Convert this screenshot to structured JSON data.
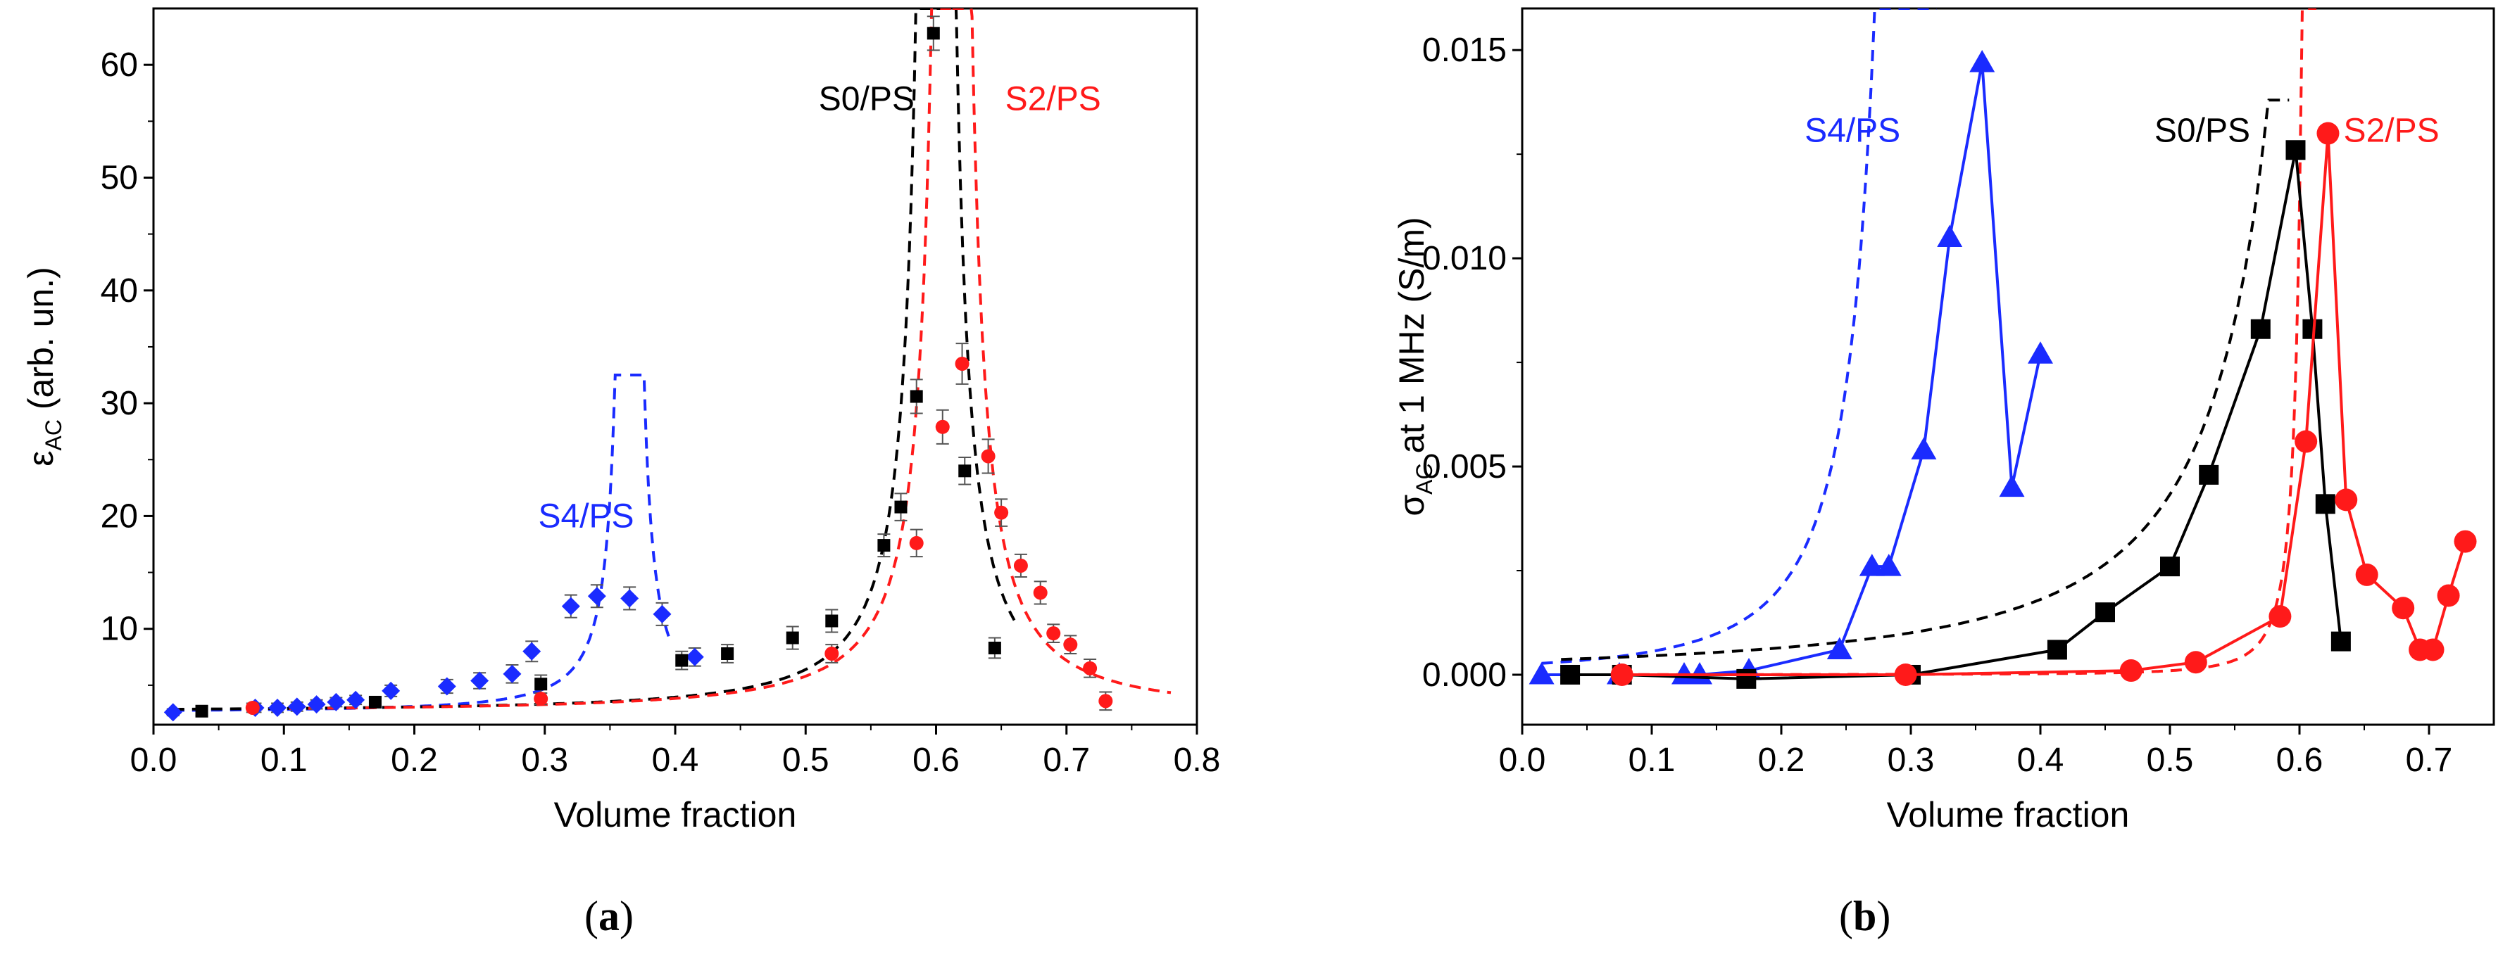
{
  "colors": {
    "black": "#000000",
    "red": "#ff1a1a",
    "blue": "#1a2bff",
    "blue_dark": "#0a1ee0",
    "grey": "#555555"
  },
  "captions": {
    "a": {
      "open": "(",
      "letter": "a",
      "close": ")"
    },
    "b": {
      "open": "(",
      "letter": "b",
      "close": ")"
    }
  },
  "chart_data": [
    {
      "type": "scatter",
      "panel": "a",
      "xlabel": "Volume fraction",
      "ylabel_main": "ε",
      "ylabel_sub": "AC",
      "ylabel_rest": " (arb. un.)",
      "xlim": [
        0.0,
        0.8
      ],
      "ylim": [
        1.5,
        65
      ],
      "xticks": [
        "0.0",
        "0.1",
        "0.2",
        "0.3",
        "0.4",
        "0.5",
        "0.6",
        "0.7",
        "0.8"
      ],
      "yticks": [
        "10",
        "20",
        "30",
        "40",
        "50",
        "60"
      ],
      "annotations": [
        "S0/PS",
        "S2/PS",
        "S4/PS"
      ],
      "series": [
        {
          "name": "S4/PS",
          "marker": "diamond",
          "color": "#1a2bff",
          "x": [
            0.015,
            0.078,
            0.095,
            0.11,
            0.125,
            0.14,
            0.155,
            0.182,
            0.225,
            0.25,
            0.275,
            0.29,
            0.32,
            0.34,
            0.365,
            0.39,
            0.415
          ],
          "y": [
            2.6,
            3.0,
            3.0,
            3.1,
            3.3,
            3.5,
            3.7,
            4.5,
            4.9,
            5.4,
            6.0,
            8.0,
            12.0,
            12.9,
            12.7,
            11.3,
            7.5
          ],
          "err": [
            0.3,
            0.4,
            0.4,
            0.4,
            0.4,
            0.4,
            0.4,
            0.5,
            0.6,
            0.7,
            0.8,
            0.9,
            1.0,
            1.0,
            1.0,
            1.0,
            0.8
          ]
        },
        {
          "name": "S0/PS",
          "marker": "square",
          "color": "#000000",
          "x": [
            0.037,
            0.17,
            0.297,
            0.405,
            0.44,
            0.49,
            0.52,
            0.56,
            0.573,
            0.585,
            0.598,
            0.622,
            0.645
          ],
          "y": [
            2.7,
            3.5,
            5.1,
            7.2,
            7.8,
            9.2,
            10.7,
            17.4,
            20.8,
            30.6,
            62.8,
            24.0,
            8.3
          ],
          "err": [
            0.4,
            0.4,
            0.8,
            0.8,
            0.8,
            1.0,
            1.0,
            1.0,
            1.2,
            1.5,
            1.5,
            1.2,
            0.9
          ]
        },
        {
          "name": "S2/PS",
          "marker": "circle",
          "color": "#ff1a1a",
          "x": [
            0.076,
            0.297,
            0.52,
            0.585,
            0.605,
            0.62,
            0.64,
            0.65,
            0.665,
            0.68,
            0.69,
            0.703,
            0.718,
            0.73
          ],
          "y": [
            3.0,
            3.8,
            7.8,
            17.6,
            27.9,
            33.5,
            25.3,
            20.3,
            15.6,
            13.2,
            9.6,
            8.6,
            6.5,
            3.6
          ],
          "err": [
            0.4,
            0.5,
            0.8,
            1.2,
            1.5,
            1.8,
            1.5,
            1.2,
            1.0,
            1.0,
            0.8,
            0.8,
            0.8,
            0.8
          ]
        }
      ],
      "fits": [
        {
          "name": "S4/PS fit",
          "color": "#1a2bff",
          "x0": 0.015,
          "pc": 0.365,
          "a": 2.6,
          "b": 0.035,
          "n": 1.5,
          "limit": 32.5,
          "right_end": 0.395
        },
        {
          "name": "S0/PS fit",
          "color": "#000000",
          "x0": 0.015,
          "pc": 0.6,
          "a": 2.6,
          "b": 0.12,
          "n": 1.5,
          "limit": 65,
          "right_end": 0.66
        },
        {
          "name": "S2/PS fit",
          "color": "#ff1a1a",
          "x0": 0.075,
          "pc": 0.612,
          "a": 2.6,
          "b": 0.12,
          "n": 1.5,
          "limit": 65,
          "right_end": 0.78
        }
      ]
    },
    {
      "type": "line",
      "panel": "b",
      "xlabel": "Volume fraction",
      "ylabel_main": "σ",
      "ylabel_sub": "AC",
      "ylabel_rest": " at 1 MHz (S/m)",
      "xlim": [
        0.0,
        0.75
      ],
      "ylim": [
        -0.0012,
        0.016
      ],
      "xticks": [
        "0.0",
        "0.1",
        "0.2",
        "0.3",
        "0.4",
        "0.5",
        "0.6",
        "0.7"
      ],
      "yticks": [
        "0.000",
        "0.005",
        "0.010",
        "0.015"
      ],
      "annotations": [
        "S4/PS",
        "S0/PS",
        "S2/PS"
      ],
      "series": [
        {
          "name": "S4/PS",
          "marker": "triangle",
          "color": "#1a2bff",
          "x": [
            0.015,
            0.075,
            0.125,
            0.137,
            0.175,
            0.245,
            0.27,
            0.283,
            0.31,
            0.33,
            0.355,
            0.378,
            0.4
          ],
          "y": [
            0.0,
            0.0,
            0.0,
            0.0,
            0.0001,
            0.0006,
            0.0026,
            0.0026,
            0.0054,
            0.0105,
            0.0147,
            0.0045,
            0.0077
          ]
        },
        {
          "name": "S0/PS",
          "marker": "square",
          "color": "#000000",
          "x": [
            0.037,
            0.077,
            0.173,
            0.3,
            0.413,
            0.45,
            0.5,
            0.53,
            0.57,
            0.597,
            0.61,
            0.62,
            0.632
          ],
          "y": [
            0.0,
            0.0,
            -0.0001,
            0.0,
            0.0006,
            0.0015,
            0.0026,
            0.0048,
            0.0083,
            0.0126,
            0.0083,
            0.0041,
            0.0008
          ]
        },
        {
          "name": "S2/PS",
          "marker": "circle",
          "color": "#ff1a1a",
          "x": [
            0.077,
            0.296,
            0.47,
            0.52,
            0.585,
            0.605,
            0.622,
            0.636,
            0.652,
            0.68,
            0.693,
            0.703,
            0.715,
            0.728
          ],
          "y": [
            0.0,
            0.0,
            0.0001,
            0.0003,
            0.0014,
            0.0056,
            0.013,
            0.0042,
            0.0024,
            0.0016,
            0.0006,
            0.0006,
            0.0019,
            0.0032
          ]
        }
      ],
      "fits": [
        {
          "name": "S4/PS fit",
          "color": "#1a2bff",
          "x0": 0.015,
          "pc": 0.32,
          "a": 0.0,
          "b": 2e-05,
          "n": 2.2,
          "limit": 0.016,
          "vertical_at": 0.32
        },
        {
          "name": "S0/PS fit",
          "color": "#000000",
          "x0": 0.03,
          "pc": 0.66,
          "a": 0.0,
          "b": 0.00016,
          "n": 1.8,
          "limit": 0.0138,
          "stop": 0.592
        },
        {
          "name": "S2/PS fit",
          "color": "#ff1a1a",
          "x0": 0.075,
          "pc": 0.613,
          "a": 0.0,
          "b": 8e-07,
          "n": 2.2,
          "limit": 0.016,
          "vertical_at": 0.613
        }
      ]
    }
  ]
}
